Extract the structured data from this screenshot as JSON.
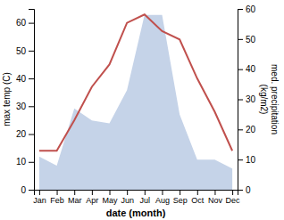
{
  "chart_data": {
    "type": "line",
    "categories": [
      "Jan",
      "Feb",
      "Mar",
      "Apr",
      "May",
      "Jun",
      "Jul",
      "Aug",
      "Sep",
      "Oct",
      "Nov",
      "Dec"
    ],
    "series": [
      {
        "type": "area",
        "axis": "y2",
        "color": "#c5d3e8",
        "values": [
          11,
          8,
          27,
          23,
          22,
          33,
          58,
          58,
          25,
          10,
          10,
          7
        ]
      },
      {
        "type": "line",
        "color": "#c0504d",
        "values": [
          14,
          14,
          25,
          37,
          45,
          60,
          63,
          57,
          54,
          40,
          28,
          14
        ]
      }
    ],
    "xlabel": "date (month)",
    "ylabel": "max temp (C)",
    "y2label": "med. precipitation\n(kg/m2)",
    "ylim": [
      0,
      65
    ],
    "yticks": [
      0,
      10,
      20,
      30,
      40,
      50,
      60
    ],
    "y2lim": [
      0,
      60
    ],
    "y2ticks": [
      0,
      10,
      20,
      30,
      40,
      50,
      60
    ],
    "grid": false
  }
}
